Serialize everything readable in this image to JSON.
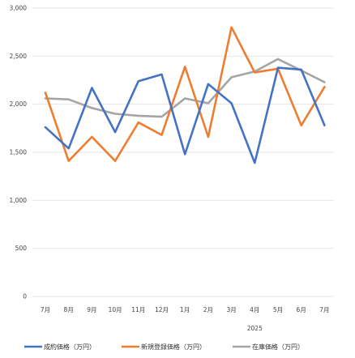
{
  "chart_data": {
    "type": "line",
    "categories": [
      "7月",
      "8月",
      "9月",
      "10月",
      "11月",
      "12月",
      "1月",
      "2月",
      "3月",
      "4月",
      "5月",
      "6月",
      "7月"
    ],
    "year_label": "2025",
    "ylim": [
      0,
      3000
    ],
    "yticks": [
      "0",
      "500",
      "1,000",
      "1,500",
      "2,000",
      "2,500",
      "3,000"
    ],
    "ytick_values": [
      0,
      500,
      1000,
      1500,
      2000,
      2500,
      3000
    ],
    "grid": true,
    "legend_position": "bottom",
    "series": [
      {
        "name": "成約価格（万円）",
        "color": "#4472c4",
        "values": [
          1760,
          1540,
          2170,
          1710,
          2240,
          2310,
          1480,
          2210,
          2010,
          1390,
          2380,
          2360,
          1780
        ]
      },
      {
        "name": "新規登録価格（万円）",
        "color": "#ed7d31",
        "values": [
          2120,
          1410,
          1660,
          1410,
          1810,
          1680,
          2390,
          1660,
          2800,
          2330,
          2370,
          1780,
          2180
        ]
      },
      {
        "name": "在庫価格（万円）",
        "color": "#a5a5a5",
        "values": [
          2060,
          2050,
          1960,
          1900,
          1880,
          1870,
          2060,
          2010,
          2280,
          2340,
          2470,
          2350,
          2230
        ]
      }
    ]
  }
}
